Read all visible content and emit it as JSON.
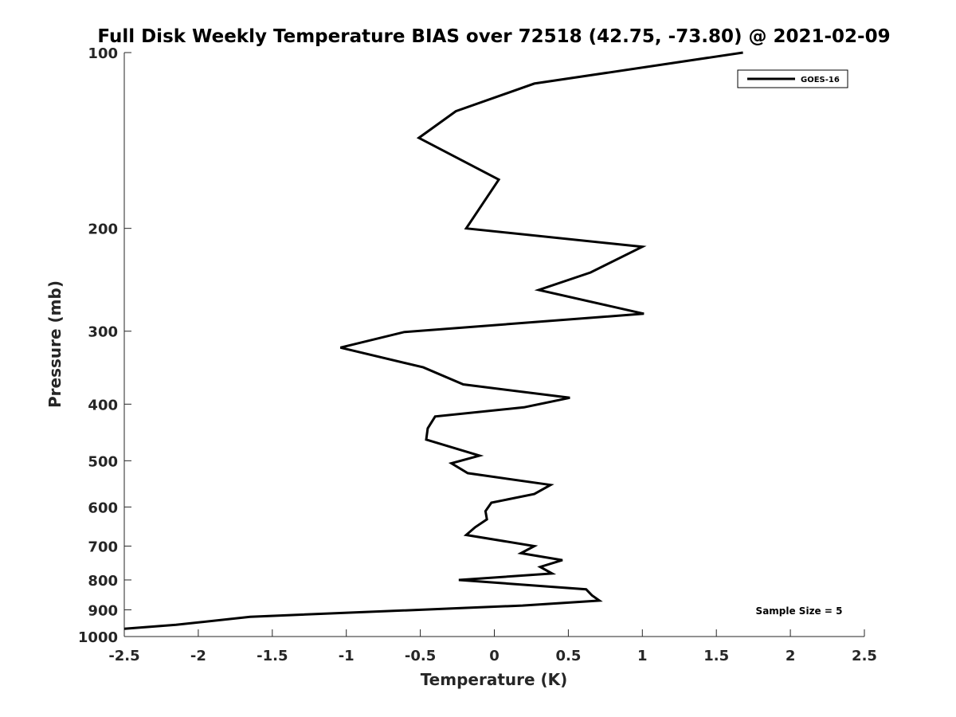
{
  "chart_data": {
    "type": "line",
    "title": "Full Disk Weekly Temperature BIAS over 72518 (42.75, -73.80) @ 2021-02-09",
    "xlabel": "Temperature (K)",
    "ylabel": "Pressure (mb)",
    "xlim": [
      -2.5,
      2.5
    ],
    "ylim": [
      100,
      1000
    ],
    "y_scale": "log",
    "y_reversed": true,
    "x_ticks": [
      -2.5,
      -2,
      -1.5,
      -1,
      -0.5,
      0,
      0.5,
      1,
      1.5,
      2,
      2.5
    ],
    "x_tick_labels": [
      "-2.5",
      "-2",
      "-1.5",
      "-1",
      "-0.5",
      "0",
      "0.5",
      "1",
      "1.5",
      "2",
      "2.5"
    ],
    "y_ticks": [
      100,
      200,
      300,
      400,
      500,
      600,
      700,
      800,
      900,
      1000
    ],
    "y_tick_labels": [
      "100",
      "200",
      "300",
      "400",
      "500",
      "600",
      "700",
      "800",
      "900",
      "1000"
    ],
    "grid": false,
    "legend_position": "top-right",
    "series": [
      {
        "name": "GOES-16",
        "color": "#000000",
        "x": [
          1.68,
          0.27,
          -0.26,
          -0.51,
          0.03,
          -0.19,
          1.0,
          0.65,
          0.3,
          1.01,
          -0.61,
          -1.04,
          -0.48,
          -0.21,
          0.51,
          0.2,
          -0.4,
          -0.45,
          -0.46,
          -0.1,
          -0.29,
          -0.18,
          0.38,
          0.27,
          -0.02,
          -0.06,
          -0.05,
          -0.13,
          -0.19,
          0.27,
          0.18,
          0.46,
          0.31,
          0.39,
          -0.24,
          0.62,
          0.66,
          0.71,
          0.19,
          -1.65,
          -2.15,
          -2.5
        ],
        "y": [
          100,
          113,
          126,
          140,
          165,
          200,
          215,
          238,
          255,
          280,
          301,
          320,
          346,
          370,
          390,
          405,
          420,
          440,
          460,
          490,
          505,
          525,
          550,
          570,
          590,
          610,
          630,
          650,
          670,
          700,
          720,
          740,
          760,
          780,
          800,
          830,
          850,
          868,
          885,
          925,
          955,
          970
        ]
      }
    ],
    "annotations": [
      "Sample Size = 5"
    ]
  }
}
